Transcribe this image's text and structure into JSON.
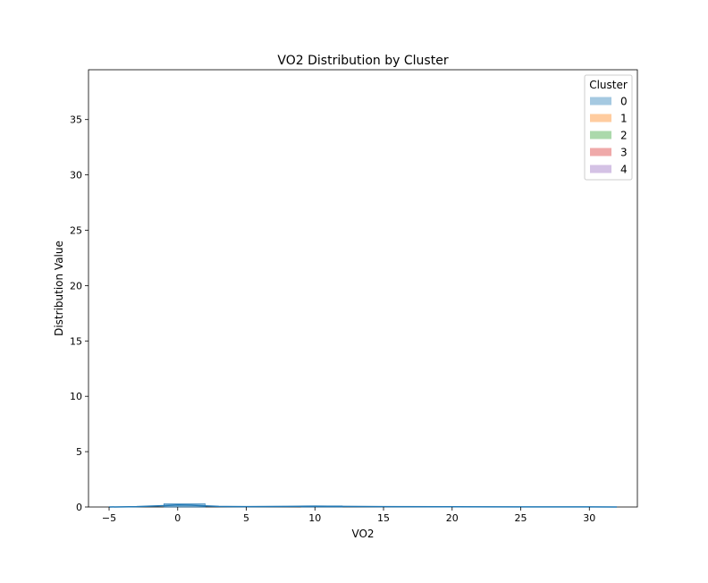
{
  "chart_data": {
    "type": "area",
    "title": "VO2 Distribution by Cluster",
    "xlabel": "VO2",
    "ylabel": "Distribution Value",
    "xlim": [
      -6.5,
      33.5
    ],
    "ylim": [
      0,
      39.5
    ],
    "xticks": [
      -5,
      0,
      5,
      10,
      15,
      20,
      25,
      30
    ],
    "yticks": [
      0,
      5,
      10,
      15,
      20,
      25,
      30,
      35
    ],
    "grid": false,
    "legend": {
      "title": "Cluster",
      "placement": "top-right"
    },
    "colors": [
      "#1f77b4",
      "#ff7f0e",
      "#2ca02c",
      "#d62728",
      "#9467bd"
    ],
    "series": [
      {
        "name": "0",
        "x": [
          -5,
          -3,
          -1,
          0,
          1,
          2,
          3,
          5,
          8,
          10,
          12,
          15,
          20,
          25,
          30,
          32
        ],
        "values": [
          0.0,
          0.03,
          0.12,
          0.18,
          0.16,
          0.1,
          0.05,
          0.03,
          0.05,
          0.07,
          0.05,
          0.03,
          0.02,
          0.01,
          0.01,
          0.0
        ],
        "bins": [
          {
            "x0": -1,
            "x1": 2,
            "value": 0.3
          },
          {
            "x0": 9,
            "x1": 12,
            "value": 0.1
          }
        ]
      },
      {
        "name": "1",
        "x": [],
        "values": []
      },
      {
        "name": "2",
        "x": [],
        "values": []
      },
      {
        "name": "3",
        "x": [],
        "values": []
      },
      {
        "name": "4",
        "x": [],
        "values": []
      }
    ]
  }
}
